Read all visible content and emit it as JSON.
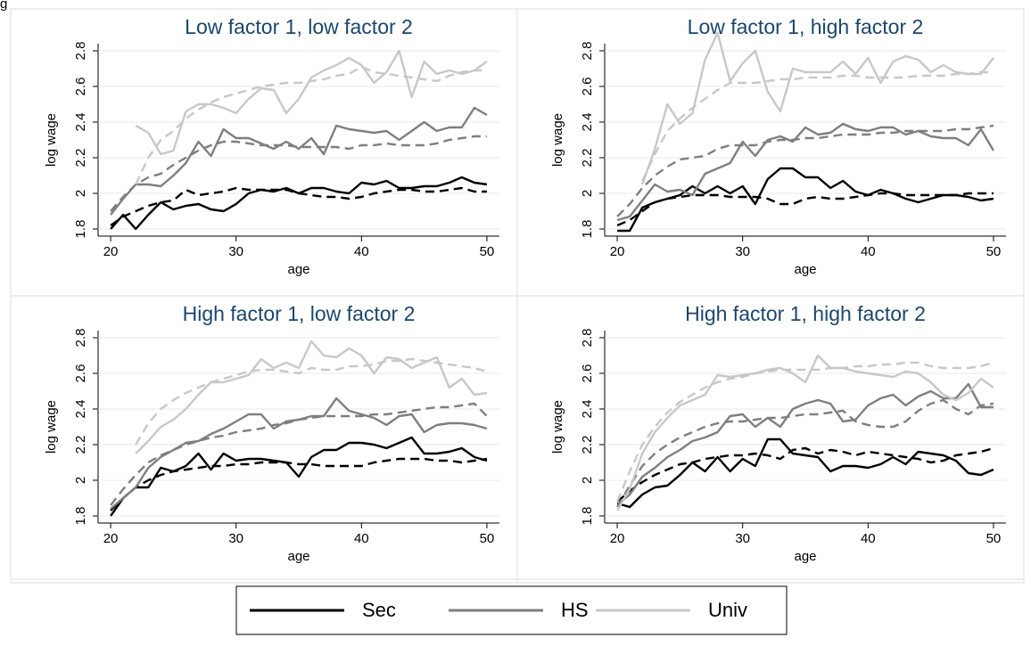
{
  "corner_text": "g",
  "legend": {
    "entries": [
      {
        "name": "Sec",
        "color": "#000000"
      },
      {
        "name": "HS",
        "color": "#7f7f7f"
      },
      {
        "name": "Univ",
        "color": "#c8c8c8"
      }
    ]
  },
  "chart_data": [
    {
      "type": "line",
      "title": "Low factor 1, low factor 2",
      "x_label": "age",
      "y_label": "log wage",
      "x": [
        20,
        21,
        22,
        23,
        24,
        25,
        26,
        27,
        28,
        29,
        30,
        31,
        32,
        33,
        34,
        35,
        36,
        37,
        38,
        39,
        40,
        41,
        42,
        43,
        44,
        45,
        46,
        47,
        48,
        49,
        50
      ],
      "xlim": [
        19,
        51
      ],
      "xticks": [
        20,
        30,
        40,
        50
      ],
      "ylim": [
        1.76,
        2.84
      ],
      "yticks": [
        1.8,
        2,
        2.2,
        2.4,
        2.6,
        2.8
      ],
      "series": [
        {
          "color": "#000000",
          "dash": false,
          "values": [
            1.8,
            1.88,
            1.8,
            1.88,
            1.95,
            1.91,
            1.93,
            1.94,
            1.91,
            1.9,
            1.94,
            2.0,
            2.02,
            2.01,
            2.03,
            2.0,
            2.03,
            2.03,
            2.01,
            2.0,
            2.06,
            2.05,
            2.07,
            2.03,
            2.03,
            2.04,
            2.04,
            2.06,
            2.09,
            2.06,
            2.05
          ]
        },
        {
          "color": "#000000",
          "dash": true,
          "values": [
            1.82,
            1.87,
            1.9,
            1.93,
            1.95,
            1.96,
            2.02,
            1.99,
            2.0,
            2.01,
            2.03,
            2.02,
            2.02,
            2.02,
            2.02,
            2.0,
            1.99,
            1.98,
            1.98,
            1.97,
            1.98,
            2.0,
            2.01,
            2.02,
            2.02,
            2.01,
            2.01,
            2.02,
            2.03,
            2.01,
            2.01
          ]
        },
        {
          "color": "#7f7f7f",
          "dash": false,
          "values": [
            1.88,
            1.97,
            2.05,
            2.05,
            2.04,
            2.1,
            2.17,
            2.29,
            2.21,
            2.36,
            2.31,
            2.31,
            2.28,
            2.25,
            2.29,
            2.25,
            2.31,
            2.22,
            2.38,
            2.36,
            2.35,
            2.34,
            2.35,
            2.3,
            2.35,
            2.4,
            2.35,
            2.37,
            2.37,
            2.48,
            2.44
          ]
        },
        {
          "color": "#7f7f7f",
          "dash": true,
          "values": [
            1.9,
            1.98,
            2.05,
            2.09,
            2.11,
            2.16,
            2.2,
            2.24,
            2.27,
            2.29,
            2.29,
            2.28,
            2.27,
            2.27,
            2.27,
            2.26,
            2.26,
            2.26,
            2.26,
            2.25,
            2.27,
            2.27,
            2.28,
            2.27,
            2.27,
            2.27,
            2.28,
            2.3,
            2.31,
            2.32,
            2.32
          ]
        },
        {
          "color": "#c8c8c8",
          "dash": false,
          "values": [
            null,
            null,
            2.38,
            2.34,
            2.22,
            2.24,
            2.46,
            2.5,
            2.5,
            2.48,
            2.45,
            2.53,
            2.59,
            2.58,
            2.45,
            2.53,
            2.65,
            2.69,
            2.72,
            2.76,
            2.72,
            2.62,
            2.68,
            2.8,
            2.54,
            2.74,
            2.67,
            2.69,
            2.67,
            2.69,
            2.74
          ]
        },
        {
          "color": "#c8c8c8",
          "dash": true,
          "values": [
            null,
            null,
            2.05,
            2.2,
            2.3,
            2.35,
            2.42,
            2.47,
            2.51,
            2.54,
            2.56,
            2.58,
            2.6,
            2.61,
            2.62,
            2.62,
            2.63,
            2.64,
            2.66,
            2.67,
            2.71,
            2.68,
            2.67,
            2.66,
            2.65,
            2.64,
            2.63,
            2.66,
            2.68,
            2.69,
            2.69
          ]
        }
      ]
    },
    {
      "type": "line",
      "title": "Low factor 1, high factor 2",
      "x_label": "age",
      "y_label": "log wage",
      "x": [
        20,
        21,
        22,
        23,
        24,
        25,
        26,
        27,
        28,
        29,
        30,
        31,
        32,
        33,
        34,
        35,
        36,
        37,
        38,
        39,
        40,
        41,
        42,
        43,
        44,
        45,
        46,
        47,
        48,
        49,
        50
      ],
      "xlim": [
        19,
        51
      ],
      "xticks": [
        20,
        30,
        40,
        50
      ],
      "ylim": [
        1.76,
        2.84
      ],
      "yticks": [
        1.8,
        2,
        2.2,
        2.4,
        2.6,
        2.8
      ],
      "series": [
        {
          "color": "#000000",
          "dash": false,
          "values": [
            1.79,
            1.79,
            1.92,
            1.95,
            1.97,
            1.99,
            2.04,
            2.0,
            2.04,
            2.0,
            2.04,
            1.94,
            2.08,
            2.14,
            2.14,
            2.09,
            2.09,
            2.03,
            2.07,
            2.01,
            1.99,
            2.02,
            2.0,
            1.97,
            1.95,
            1.97,
            1.99,
            1.99,
            1.98,
            1.96,
            1.97
          ]
        },
        {
          "color": "#000000",
          "dash": true,
          "values": [
            1.82,
            1.85,
            1.9,
            1.95,
            1.97,
            1.98,
            1.99,
            1.99,
            1.99,
            1.98,
            1.98,
            1.98,
            1.97,
            1.94,
            1.94,
            1.97,
            1.98,
            1.97,
            1.97,
            1.98,
            1.99,
            2.0,
            2.0,
            1.99,
            1.99,
            1.99,
            1.99,
            1.99,
            2.0,
            2.0,
            2.0
          ]
        },
        {
          "color": "#7f7f7f",
          "dash": false,
          "values": [
            1.85,
            1.87,
            1.96,
            2.05,
            2.01,
            2.02,
            1.99,
            2.11,
            2.14,
            2.17,
            2.29,
            2.21,
            2.3,
            2.32,
            2.29,
            2.37,
            2.33,
            2.34,
            2.39,
            2.36,
            2.35,
            2.37,
            2.37,
            2.33,
            2.35,
            2.32,
            2.31,
            2.31,
            2.27,
            2.36,
            2.24
          ]
        },
        {
          "color": "#7f7f7f",
          "dash": true,
          "values": [
            1.87,
            1.94,
            2.03,
            2.1,
            2.15,
            2.19,
            2.2,
            2.21,
            2.25,
            2.27,
            2.27,
            2.27,
            2.29,
            2.3,
            2.3,
            2.31,
            2.31,
            2.32,
            2.33,
            2.33,
            2.33,
            2.34,
            2.34,
            2.35,
            2.35,
            2.35,
            2.35,
            2.36,
            2.36,
            2.37,
            2.38
          ]
        },
        {
          "color": "#c8c8c8",
          "dash": false,
          "values": [
            null,
            null,
            2.05,
            2.25,
            2.5,
            2.39,
            2.45,
            2.75,
            2.9,
            2.63,
            2.73,
            2.8,
            2.57,
            2.46,
            2.7,
            2.68,
            2.68,
            2.68,
            2.74,
            2.67,
            2.76,
            2.62,
            2.74,
            2.77,
            2.75,
            2.68,
            2.72,
            2.68,
            2.67,
            2.67,
            2.76
          ]
        },
        {
          "color": "#c8c8c8",
          "dash": true,
          "values": [
            null,
            null,
            2.07,
            2.22,
            2.35,
            2.42,
            2.48,
            2.53,
            2.58,
            2.62,
            2.62,
            2.62,
            2.63,
            2.64,
            2.64,
            2.65,
            2.65,
            2.65,
            2.66,
            2.66,
            2.65,
            2.65,
            2.65,
            2.65,
            2.66,
            2.66,
            2.66,
            2.67,
            2.67,
            2.68,
            2.68
          ]
        }
      ]
    },
    {
      "type": "line",
      "title": "High factor 1, low factor 2",
      "x_label": "age",
      "y_label": "log wage",
      "x": [
        20,
        21,
        22,
        23,
        24,
        25,
        26,
        27,
        28,
        29,
        30,
        31,
        32,
        33,
        34,
        35,
        36,
        37,
        38,
        39,
        40,
        41,
        42,
        43,
        44,
        45,
        46,
        47,
        48,
        49,
        50
      ],
      "xlim": [
        19,
        51
      ],
      "xticks": [
        20,
        30,
        40,
        50
      ],
      "ylim": [
        1.76,
        2.84
      ],
      "yticks": [
        1.8,
        2,
        2.2,
        2.4,
        2.6,
        2.8
      ],
      "series": [
        {
          "color": "#000000",
          "dash": false,
          "values": [
            1.8,
            1.9,
            1.96,
            1.96,
            2.07,
            2.05,
            2.08,
            2.15,
            2.06,
            2.15,
            2.11,
            2.12,
            2.12,
            2.11,
            2.1,
            2.02,
            2.13,
            2.17,
            2.17,
            2.21,
            2.21,
            2.2,
            2.18,
            2.21,
            2.24,
            2.15,
            2.15,
            2.16,
            2.18,
            2.13,
            2.11
          ]
        },
        {
          "color": "#000000",
          "dash": true,
          "values": [
            1.83,
            1.9,
            1.96,
            2.0,
            2.03,
            2.05,
            2.06,
            2.07,
            2.08,
            2.08,
            2.09,
            2.09,
            2.1,
            2.1,
            2.1,
            2.09,
            2.09,
            2.08,
            2.08,
            2.08,
            2.08,
            2.1,
            2.11,
            2.12,
            2.12,
            2.12,
            2.11,
            2.11,
            2.1,
            2.11,
            2.12
          ]
        },
        {
          "color": "#7f7f7f",
          "dash": false,
          "values": [
            1.84,
            1.9,
            1.96,
            2.07,
            2.13,
            2.17,
            2.21,
            2.22,
            2.26,
            2.29,
            2.33,
            2.37,
            2.37,
            2.29,
            2.33,
            2.34,
            2.36,
            2.36,
            2.46,
            2.39,
            2.37,
            2.35,
            2.31,
            2.36,
            2.37,
            2.27,
            2.31,
            2.32,
            2.32,
            2.31,
            2.29
          ]
        },
        {
          "color": "#7f7f7f",
          "dash": true,
          "values": [
            1.86,
            1.95,
            2.03,
            2.1,
            2.14,
            2.17,
            2.2,
            2.22,
            2.24,
            2.25,
            2.27,
            2.28,
            2.29,
            2.31,
            2.32,
            2.34,
            2.35,
            2.36,
            2.36,
            2.36,
            2.36,
            2.37,
            2.37,
            2.38,
            2.39,
            2.4,
            2.41,
            2.41,
            2.42,
            2.43,
            2.36
          ]
        },
        {
          "color": "#c8c8c8",
          "dash": false,
          "values": [
            null,
            null,
            2.15,
            2.22,
            2.3,
            2.34,
            2.4,
            2.48,
            2.55,
            2.55,
            2.57,
            2.59,
            2.68,
            2.63,
            2.66,
            2.63,
            2.78,
            2.7,
            2.69,
            2.74,
            2.7,
            2.6,
            2.69,
            2.68,
            2.63,
            2.66,
            2.69,
            2.52,
            2.57,
            2.48,
            2.49
          ]
        },
        {
          "color": "#c8c8c8",
          "dash": true,
          "values": [
            null,
            null,
            2.2,
            2.32,
            2.4,
            2.45,
            2.49,
            2.52,
            2.55,
            2.57,
            2.59,
            2.61,
            2.62,
            2.62,
            2.61,
            2.6,
            2.63,
            2.62,
            2.62,
            2.64,
            2.64,
            2.65,
            2.67,
            2.67,
            2.68,
            2.67,
            2.66,
            2.65,
            2.64,
            2.63,
            2.61
          ]
        }
      ]
    },
    {
      "type": "line",
      "title": "High factor 1, high factor 2",
      "x_label": "age",
      "y_label": "log wage",
      "x": [
        20,
        21,
        22,
        23,
        24,
        25,
        26,
        27,
        28,
        29,
        30,
        31,
        32,
        33,
        34,
        35,
        36,
        37,
        38,
        39,
        40,
        41,
        42,
        43,
        44,
        45,
        46,
        47,
        48,
        49,
        50
      ],
      "xlim": [
        19,
        51
      ],
      "xticks": [
        20,
        30,
        40,
        50
      ],
      "ylim": [
        1.76,
        2.84
      ],
      "yticks": [
        1.8,
        2,
        2.2,
        2.4,
        2.6,
        2.8
      ],
      "series": [
        {
          "color": "#000000",
          "dash": false,
          "values": [
            1.87,
            1.85,
            1.92,
            1.96,
            1.97,
            2.03,
            2.1,
            2.05,
            2.13,
            2.05,
            2.12,
            2.08,
            2.23,
            2.23,
            2.15,
            2.14,
            2.13,
            2.05,
            2.08,
            2.08,
            2.07,
            2.09,
            2.13,
            2.09,
            2.16,
            2.15,
            2.14,
            2.11,
            2.04,
            2.03,
            2.06
          ]
        },
        {
          "color": "#000000",
          "dash": true,
          "values": [
            1.88,
            1.94,
            1.99,
            2.03,
            2.06,
            2.09,
            2.1,
            2.12,
            2.13,
            2.14,
            2.14,
            2.15,
            2.14,
            2.12,
            2.17,
            2.18,
            2.15,
            2.17,
            2.16,
            2.14,
            2.16,
            2.15,
            2.14,
            2.13,
            2.12,
            2.1,
            2.11,
            2.14,
            2.15,
            2.16,
            2.18
          ]
        },
        {
          "color": "#7f7f7f",
          "dash": false,
          "values": [
            1.86,
            1.92,
            2.02,
            2.07,
            2.13,
            2.17,
            2.22,
            2.24,
            2.27,
            2.36,
            2.37,
            2.3,
            2.35,
            2.3,
            2.4,
            2.43,
            2.45,
            2.43,
            2.33,
            2.34,
            2.42,
            2.46,
            2.48,
            2.42,
            2.47,
            2.5,
            2.46,
            2.46,
            2.54,
            2.41,
            2.41
          ]
        },
        {
          "color": "#7f7f7f",
          "dash": true,
          "values": [
            1.85,
            1.97,
            2.08,
            2.15,
            2.2,
            2.24,
            2.27,
            2.3,
            2.32,
            2.33,
            2.33,
            2.34,
            2.35,
            2.35,
            2.36,
            2.37,
            2.37,
            2.38,
            2.39,
            2.33,
            2.31,
            2.3,
            2.3,
            2.33,
            2.39,
            2.43,
            2.45,
            2.4,
            2.37,
            2.42,
            2.43
          ]
        },
        {
          "color": "#c8c8c8",
          "dash": false,
          "values": [
            1.83,
            1.95,
            2.15,
            2.27,
            2.35,
            2.42,
            2.45,
            2.48,
            2.59,
            2.58,
            2.59,
            2.6,
            2.62,
            2.63,
            2.6,
            2.55,
            2.7,
            2.63,
            2.63,
            2.61,
            2.6,
            2.59,
            2.58,
            2.61,
            2.6,
            2.55,
            2.48,
            2.45,
            2.49,
            2.57,
            2.52
          ]
        },
        {
          "color": "#c8c8c8",
          "dash": true,
          "values": [
            1.88,
            2.05,
            2.2,
            2.3,
            2.38,
            2.44,
            2.48,
            2.52,
            2.55,
            2.57,
            2.58,
            2.6,
            2.61,
            2.62,
            2.62,
            2.62,
            2.62,
            2.63,
            2.63,
            2.64,
            2.64,
            2.65,
            2.65,
            2.66,
            2.66,
            2.64,
            2.63,
            2.63,
            2.63,
            2.64,
            2.66
          ]
        }
      ]
    }
  ]
}
